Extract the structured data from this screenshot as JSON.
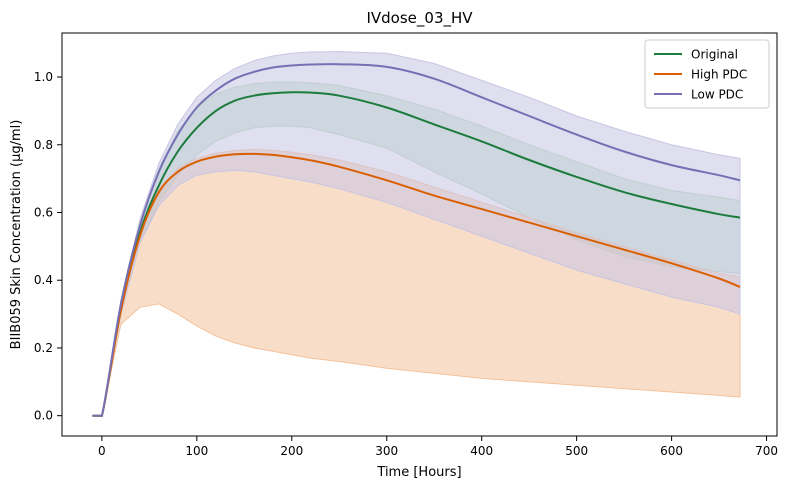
{
  "chart_data": {
    "type": "line",
    "title": "IVdose_03_HV",
    "xlabel": "Time [Hours]",
    "ylabel": "BIIB059 Skin Concentration (µg/ml)",
    "xlim": [
      -42,
      711
    ],
    "ylim": [
      -0.06,
      1.13
    ],
    "xticks": [
      0,
      100,
      200,
      300,
      400,
      500,
      600,
      700
    ],
    "yticks": [
      0.0,
      0.2,
      0.4,
      0.6,
      0.8,
      1.0
    ],
    "xtick_labels": [
      "0",
      "100",
      "200",
      "300",
      "400",
      "500",
      "600",
      "700"
    ],
    "ytick_labels": [
      "0.0",
      "0.2",
      "0.4",
      "0.6",
      "0.8",
      "1.0"
    ],
    "legend_position": "top-right",
    "grid": false,
    "x": [
      -10,
      0,
      20,
      40,
      60,
      80,
      100,
      120,
      140,
      160,
      180,
      200,
      220,
      250,
      300,
      350,
      400,
      450,
      500,
      550,
      600,
      650,
      672
    ],
    "series": [
      {
        "name": "Original",
        "color": "#1b7c3d",
        "band_color": "#b7dbbd",
        "values": [
          0,
          0,
          0.32,
          0.54,
          0.68,
          0.78,
          0.85,
          0.9,
          0.93,
          0.945,
          0.952,
          0.955,
          0.954,
          0.945,
          0.91,
          0.86,
          0.81,
          0.755,
          0.705,
          0.66,
          0.625,
          0.595,
          0.585
        ],
        "upper": [
          0,
          0,
          0.33,
          0.57,
          0.73,
          0.84,
          0.91,
          0.95,
          0.97,
          0.98,
          0.985,
          0.985,
          0.983,
          0.975,
          0.945,
          0.905,
          0.855,
          0.8,
          0.75,
          0.7,
          0.665,
          0.645,
          0.635
        ],
        "lower": [
          0,
          0,
          0.3,
          0.51,
          0.63,
          0.71,
          0.77,
          0.81,
          0.835,
          0.85,
          0.855,
          0.855,
          0.85,
          0.83,
          0.79,
          0.72,
          0.655,
          0.585,
          0.52,
          0.47,
          0.44,
          0.425,
          0.42
        ]
      },
      {
        "name": "High PDC",
        "color": "#d95f02",
        "band_color": "#f3c29c",
        "values": [
          0,
          0,
          0.31,
          0.53,
          0.66,
          0.72,
          0.75,
          0.765,
          0.772,
          0.773,
          0.77,
          0.763,
          0.754,
          0.735,
          0.695,
          0.65,
          0.61,
          0.57,
          0.53,
          0.49,
          0.45,
          0.405,
          0.38
        ],
        "upper": [
          0,
          0,
          0.32,
          0.54,
          0.67,
          0.73,
          0.76,
          0.775,
          0.783,
          0.786,
          0.784,
          0.778,
          0.77,
          0.755,
          0.72,
          0.675,
          0.63,
          0.585,
          0.54,
          0.5,
          0.46,
          0.42,
          0.41
        ],
        "lower": [
          0,
          0,
          0.27,
          0.32,
          0.33,
          0.3,
          0.265,
          0.235,
          0.215,
          0.2,
          0.19,
          0.18,
          0.17,
          0.16,
          0.14,
          0.125,
          0.11,
          0.1,
          0.09,
          0.08,
          0.07,
          0.06,
          0.055
        ]
      },
      {
        "name": "Low PDC",
        "color": "#7570b3",
        "band_color": "#c7c5e3",
        "values": [
          0,
          0,
          0.33,
          0.56,
          0.72,
          0.83,
          0.91,
          0.96,
          0.995,
          1.015,
          1.028,
          1.034,
          1.037,
          1.038,
          1.03,
          0.995,
          0.94,
          0.885,
          0.83,
          0.78,
          0.74,
          0.71,
          0.695
        ],
        "upper": [
          0,
          0,
          0.34,
          0.58,
          0.745,
          0.86,
          0.94,
          0.99,
          1.025,
          1.048,
          1.062,
          1.07,
          1.074,
          1.075,
          1.07,
          1.04,
          0.99,
          0.94,
          0.885,
          0.84,
          0.8,
          0.77,
          0.76
        ],
        "lower": [
          0,
          0,
          0.3,
          0.51,
          0.62,
          0.68,
          0.71,
          0.72,
          0.725,
          0.72,
          0.71,
          0.7,
          0.69,
          0.67,
          0.63,
          0.58,
          0.53,
          0.48,
          0.43,
          0.39,
          0.35,
          0.32,
          0.3
        ]
      }
    ]
  }
}
